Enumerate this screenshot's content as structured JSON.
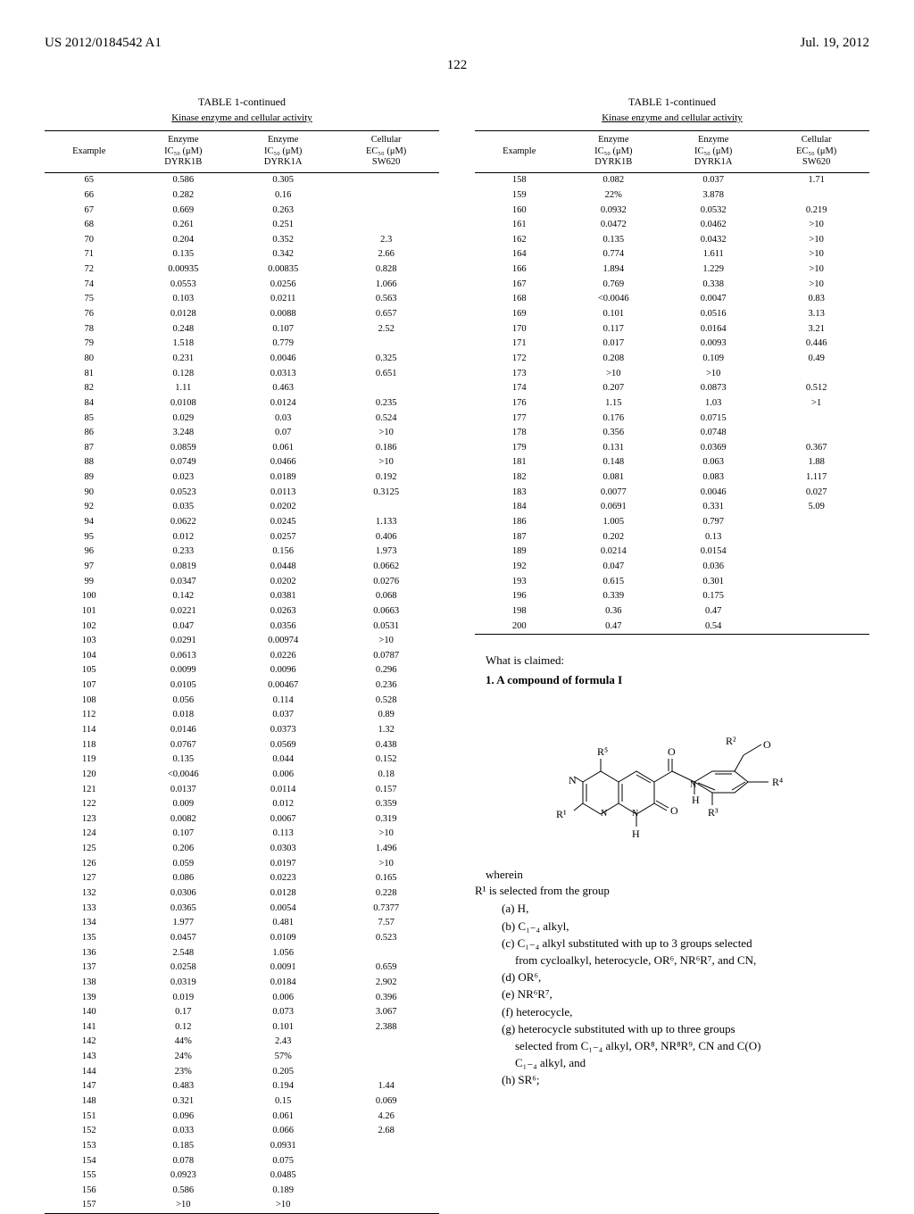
{
  "header": {
    "pub_number": "US 2012/0184542 A1",
    "pub_date": "Jul. 19, 2012"
  },
  "page_number": "122",
  "table_meta": {
    "caption": "TABLE 1-continued",
    "subtitle": "Kinase enzyme and cellular activity",
    "col_headers": [
      "Example",
      "Enzyme\nIC₅₀ (μM)\nDYRK1B",
      "Enzyme\nIC₅₀ (μM)\nDYRK1A",
      "Cellular\nEC₅₀ (μM)\nSW620"
    ]
  },
  "table_left": [
    [
      "65",
      "0.586",
      "0.305",
      ""
    ],
    [
      "66",
      "0.282",
      "0.16",
      ""
    ],
    [
      "67",
      "0.669",
      "0.263",
      ""
    ],
    [
      "68",
      "0.261",
      "0.251",
      ""
    ],
    [
      "70",
      "0.204",
      "0.352",
      "2.3"
    ],
    [
      "71",
      "0.135",
      "0.342",
      "2.66"
    ],
    [
      "72",
      "0.00935",
      "0.00835",
      "0.828"
    ],
    [
      "74",
      "0.0553",
      "0.0256",
      "1.066"
    ],
    [
      "75",
      "0.103",
      "0.0211",
      "0.563"
    ],
    [
      "76",
      "0.0128",
      "0.0088",
      "0.657"
    ],
    [
      "78",
      "0.248",
      "0.107",
      "2.52"
    ],
    [
      "79",
      "1.518",
      "0.779",
      ""
    ],
    [
      "80",
      "0.231",
      "0.0046",
      "0.325"
    ],
    [
      "81",
      "0.128",
      "0.0313",
      "0.651"
    ],
    [
      "82",
      "1.11",
      "0.463",
      ""
    ],
    [
      "84",
      "0.0108",
      "0.0124",
      "0.235"
    ],
    [
      "85",
      "0.029",
      "0.03",
      "0.524"
    ],
    [
      "86",
      "3.248",
      "0.07",
      ">10"
    ],
    [
      "87",
      "0.0859",
      "0.061",
      "0.186"
    ],
    [
      "88",
      "0.0749",
      "0.0466",
      ">10"
    ],
    [
      "89",
      "0.023",
      "0.0189",
      "0.192"
    ],
    [
      "90",
      "0.0523",
      "0.0113",
      "0.3125"
    ],
    [
      "92",
      "0.035",
      "0.0202",
      ""
    ],
    [
      "94",
      "0.0622",
      "0.0245",
      "1.133"
    ],
    [
      "95",
      "0.012",
      "0.0257",
      "0.406"
    ],
    [
      "96",
      "0.233",
      "0.156",
      "1.973"
    ],
    [
      "97",
      "0.0819",
      "0.0448",
      "0.0662"
    ],
    [
      "99",
      "0.0347",
      "0.0202",
      "0.0276"
    ],
    [
      "100",
      "0.142",
      "0.0381",
      "0.068"
    ],
    [
      "101",
      "0.0221",
      "0.0263",
      "0.0663"
    ],
    [
      "102",
      "0.047",
      "0.0356",
      "0.0531"
    ],
    [
      "103",
      "0.0291",
      "0.00974",
      ">10"
    ],
    [
      "104",
      "0.0613",
      "0.0226",
      "0.0787"
    ],
    [
      "105",
      "0.0099",
      "0.0096",
      "0.296"
    ],
    [
      "107",
      "0.0105",
      "0.00467",
      "0.236"
    ],
    [
      "108",
      "0.056",
      "0.114",
      "0.528"
    ],
    [
      "112",
      "0.018",
      "0.037",
      "0.89"
    ],
    [
      "114",
      "0.0146",
      "0.0373",
      "1.32"
    ],
    [
      "118",
      "0.0767",
      "0.0569",
      "0.438"
    ],
    [
      "119",
      "0.135",
      "0.044",
      "0.152"
    ],
    [
      "120",
      "<0.0046",
      "0.006",
      "0.18"
    ],
    [
      "121",
      "0.0137",
      "0.0114",
      "0.157"
    ],
    [
      "122",
      "0.009",
      "0.012",
      "0.359"
    ],
    [
      "123",
      "0.0082",
      "0.0067",
      "0.319"
    ],
    [
      "124",
      "0.107",
      "0.113",
      ">10"
    ],
    [
      "125",
      "0.206",
      "0.0303",
      "1.496"
    ],
    [
      "126",
      "0.059",
      "0.0197",
      ">10"
    ],
    [
      "127",
      "0.086",
      "0.0223",
      "0.165"
    ],
    [
      "132",
      "0.0306",
      "0.0128",
      "0.228"
    ],
    [
      "133",
      "0.0365",
      "0.0054",
      "0.7377"
    ],
    [
      "134",
      "1.977",
      "0.481",
      "7.57"
    ],
    [
      "135",
      "0.0457",
      "0.0109",
      "0.523"
    ],
    [
      "136",
      "2.548",
      "1.056",
      ""
    ],
    [
      "137",
      "0.0258",
      "0.0091",
      "0.659"
    ],
    [
      "138",
      "0.0319",
      "0.0184",
      "2.902"
    ],
    [
      "139",
      "0.019",
      "0.006",
      "0.396"
    ],
    [
      "140",
      "0.17",
      "0.073",
      "3.067"
    ],
    [
      "141",
      "0.12",
      "0.101",
      "2.388"
    ],
    [
      "142",
      "44%",
      "2.43",
      ""
    ],
    [
      "143",
      "24%",
      "57%",
      ""
    ],
    [
      "144",
      "23%",
      "0.205",
      ""
    ],
    [
      "147",
      "0.483",
      "0.194",
      "1.44"
    ],
    [
      "148",
      "0.321",
      "0.15",
      "0.069"
    ],
    [
      "151",
      "0.096",
      "0.061",
      "4.26"
    ],
    [
      "152",
      "0.033",
      "0.066",
      "2.68"
    ],
    [
      "153",
      "0.185",
      "0.0931",
      ""
    ],
    [
      "154",
      "0.078",
      "0.075",
      ""
    ],
    [
      "155",
      "0.0923",
      "0.0485",
      ""
    ],
    [
      "156",
      "0.586",
      "0.189",
      ""
    ],
    [
      "157",
      ">10",
      ">10",
      ""
    ]
  ],
  "table_right": [
    [
      "158",
      "0.082",
      "0.037",
      "1.71"
    ],
    [
      "159",
      "22%",
      "3.878",
      ""
    ],
    [
      "160",
      "0.0932",
      "0.0532",
      "0.219"
    ],
    [
      "161",
      "0.0472",
      "0.0462",
      ">10"
    ],
    [
      "162",
      "0.135",
      "0.0432",
      ">10"
    ],
    [
      "164",
      "0.774",
      "1.611",
      ">10"
    ],
    [
      "166",
      "1.894",
      "1.229",
      ">10"
    ],
    [
      "167",
      "0.769",
      "0.338",
      ">10"
    ],
    [
      "168",
      "<0.0046",
      "0.0047",
      "0.83"
    ],
    [
      "169",
      "0.101",
      "0.0516",
      "3.13"
    ],
    [
      "170",
      "0.117",
      "0.0164",
      "3.21"
    ],
    [
      "171",
      "0.017",
      "0.0093",
      "0.446"
    ],
    [
      "172",
      "0.208",
      "0.109",
      "0.49"
    ],
    [
      "173",
      ">10",
      ">10",
      ""
    ],
    [
      "174",
      "0.207",
      "0.0873",
      "0.512"
    ],
    [
      "176",
      "1.15",
      "1.03",
      ">1"
    ],
    [
      "177",
      "0.176",
      "0.0715",
      ""
    ],
    [
      "178",
      "0.356",
      "0.0748",
      ""
    ],
    [
      "179",
      "0.131",
      "0.0369",
      "0.367"
    ],
    [
      "181",
      "0.148",
      "0.063",
      "1.88"
    ],
    [
      "182",
      "0.081",
      "0.083",
      "1.117"
    ],
    [
      "183",
      "0.0077",
      "0.0046",
      "0.027"
    ],
    [
      "184",
      "0.0691",
      "0.331",
      "5.09"
    ],
    [
      "186",
      "1.005",
      "0.797",
      ""
    ],
    [
      "187",
      "0.202",
      "0.13",
      ""
    ],
    [
      "189",
      "0.0214",
      "0.0154",
      ""
    ],
    [
      "192",
      "0.047",
      "0.036",
      ""
    ],
    [
      "193",
      "0.615",
      "0.301",
      ""
    ],
    [
      "196",
      "0.339",
      "0.175",
      ""
    ],
    [
      "198",
      "0.36",
      "0.47",
      ""
    ],
    [
      "200",
      "0.47",
      "0.54",
      ""
    ]
  ],
  "claims": {
    "intro1": "What is claimed:",
    "claim1": "1. A compound of formula I",
    "formula_labels": {
      "r1": "R¹",
      "r2": "R²",
      "r3": "R³",
      "r4": "R⁴",
      "r5": "R⁵"
    },
    "wherein": "wherein",
    "r1_intro": "R¹ is selected from the group",
    "items": [
      "(a) H,",
      "(b) C₁₋₄ alkyl,",
      "(c) C₁₋₄ alkyl substituted with up to 3 groups selected",
      "      from cycloalkyl, heterocycle, OR⁶, NR⁶R⁷, and CN,",
      "(d) OR⁶,",
      "(e) NR⁶R⁷,",
      "(f) heterocycle,",
      "(g) heterocycle substituted with up to three groups",
      "      selected from C₁₋₄ alkyl, OR⁸, NR⁸R⁹, CN and C(O)",
      "      C₁₋₄ alkyl, and",
      "(h) SR⁶;"
    ]
  }
}
